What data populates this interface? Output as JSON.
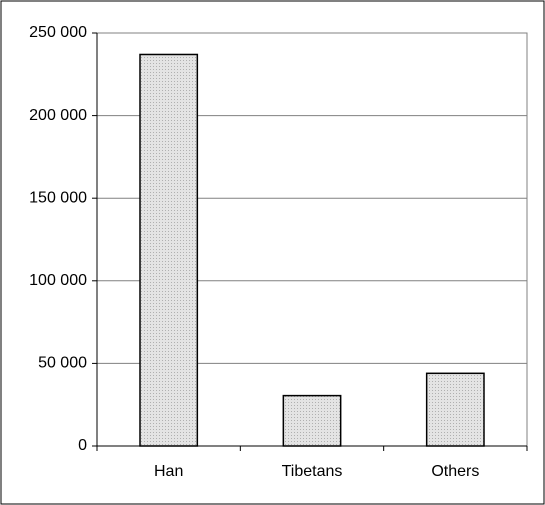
{
  "chart_data": {
    "type": "bar",
    "categories": [
      "Han",
      "Tibetans",
      "Others"
    ],
    "values": [
      237000,
      30500,
      44000
    ],
    "color": "#d9d9d9",
    "ylim": [
      0,
      250000
    ],
    "yticks": [
      {
        "value": 0,
        "label": "0"
      },
      {
        "value": 50000,
        "label": "50 000"
      },
      {
        "value": 100000,
        "label": "100 000"
      },
      {
        "value": 150000,
        "label": "150 000"
      },
      {
        "value": 200000,
        "label": "200 000"
      },
      {
        "value": 250000,
        "label": "250 000"
      }
    ],
    "grid": true
  }
}
